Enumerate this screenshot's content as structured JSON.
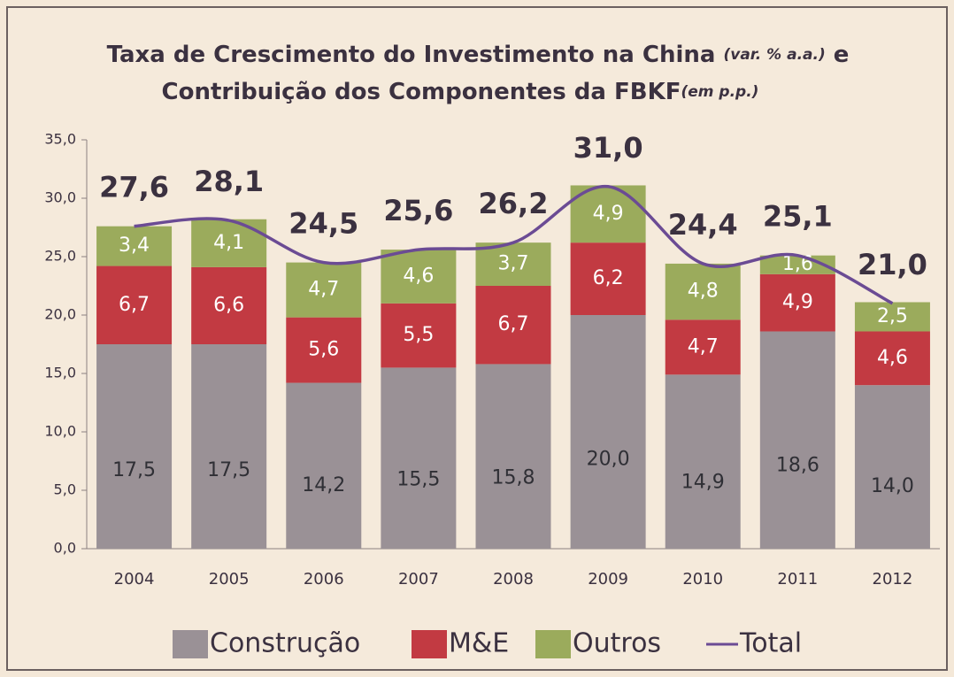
{
  "chart_data": {
    "type": "stacked_bar_line",
    "title": "Taxa de Crescimento do Investimento na China",
    "title_unit": "(var. % a.a.)",
    "title_join": "e",
    "subtitle": "Contribuição dos Componentes da FBKF",
    "subtitle_unit": "(em p.p.)",
    "categories": [
      "2004",
      "2005",
      "2006",
      "2007",
      "2008",
      "2009",
      "2010",
      "2011",
      "2012"
    ],
    "series": [
      {
        "name": "Construção",
        "color": "#9a9196",
        "label_color": "#2f2f35",
        "values": [
          17.5,
          17.5,
          14.2,
          15.5,
          15.8,
          20.0,
          14.9,
          18.6,
          14.0
        ],
        "value_labels": [
          "17,5",
          "17,5",
          "14,2",
          "15,5",
          "15,8",
          "20,0",
          "14,9",
          "18,6",
          "14,0"
        ]
      },
      {
        "name": "M&E",
        "color": "#c23a42",
        "label_color": "#ffffff",
        "values": [
          6.7,
          6.6,
          5.6,
          5.5,
          6.7,
          6.2,
          4.7,
          4.9,
          4.6
        ],
        "value_labels": [
          "6,7",
          "6,6",
          "5,6",
          "5,5",
          "6,7",
          "6,2",
          "4,7",
          "4,9",
          "4,6"
        ]
      },
      {
        "name": "Outros",
        "color": "#9bab5c",
        "label_color": "#ffffff",
        "values": [
          3.4,
          4.1,
          4.7,
          4.6,
          3.7,
          4.9,
          4.8,
          1.6,
          2.5
        ],
        "value_labels": [
          "3,4",
          "4,1",
          "4,7",
          "4,6",
          "3,7",
          "4,9",
          "4,8",
          "1,6",
          "2,5"
        ]
      },
      {
        "name": "Total",
        "type": "line",
        "color": "#6b4b94",
        "values": [
          27.6,
          28.1,
          24.5,
          25.6,
          26.2,
          31.0,
          24.4,
          25.1,
          21.0
        ],
        "value_labels": [
          "27,6",
          "28,1",
          "24,5",
          "25,6",
          "26,2",
          "31,0",
          "24,4",
          "25,1",
          "21,0"
        ]
      }
    ],
    "ylim": [
      0,
      35
    ],
    "yticks": [
      {
        "value": 0,
        "label": "0,0"
      },
      {
        "value": 5,
        "label": "5,0"
      },
      {
        "value": 10,
        "label": "10,0"
      },
      {
        "value": 15,
        "label": "15,0"
      },
      {
        "value": 20,
        "label": "20,0"
      },
      {
        "value": 25,
        "label": "25,0"
      },
      {
        "value": 30,
        "label": "30,0"
      },
      {
        "value": 35,
        "label": "35,0"
      }
    ],
    "grid": false,
    "legend": "bottom"
  }
}
